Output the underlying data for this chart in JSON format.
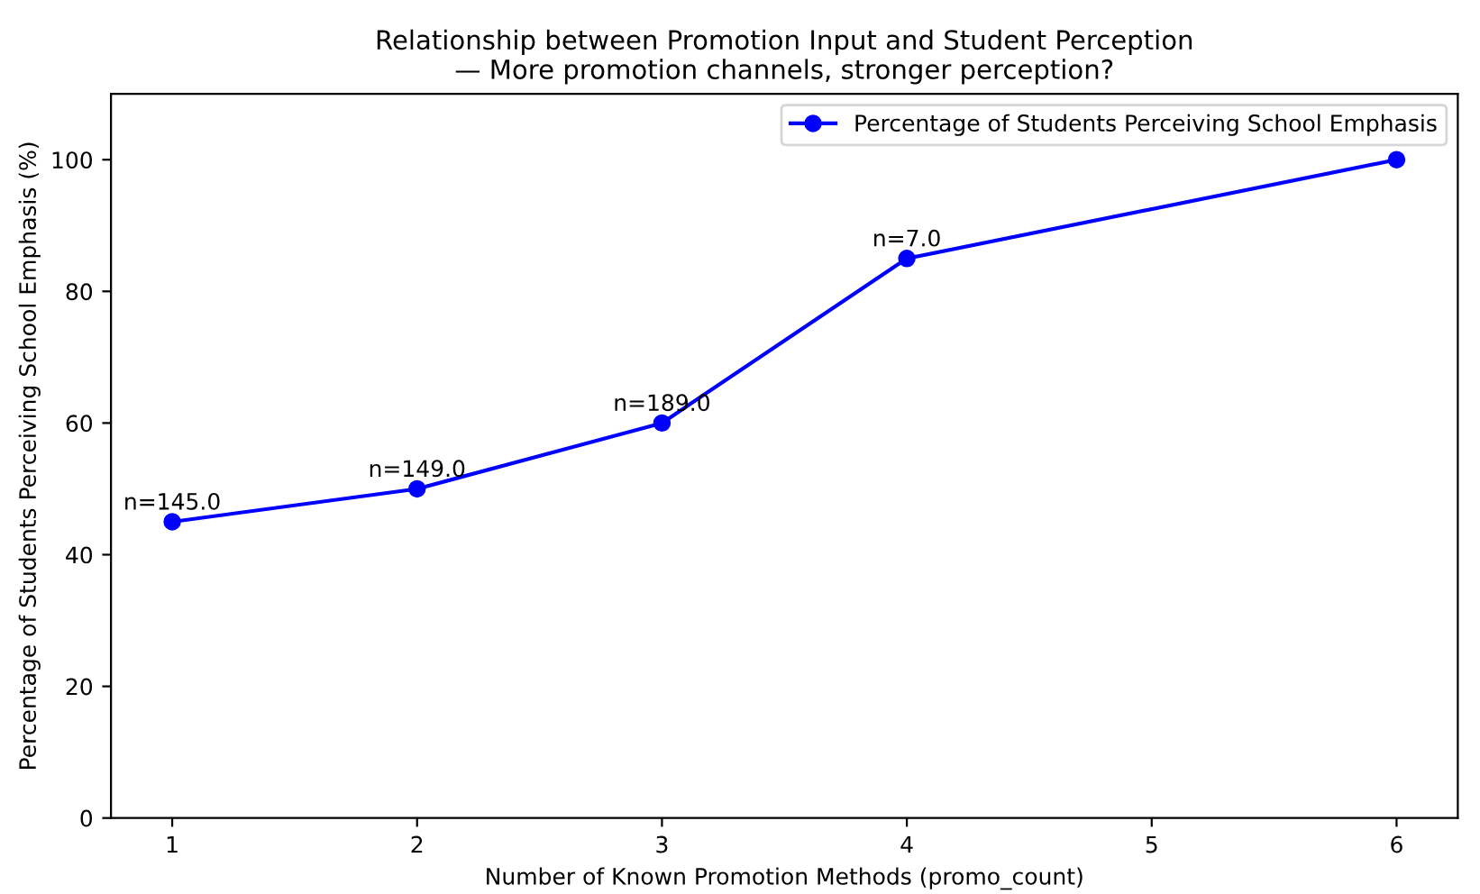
{
  "chart_data": {
    "type": "line",
    "title": "Relationship between Promotion Input and Student Perception\n— More promotion channels, stronger perception?",
    "xlabel": "Number of Known Promotion Methods (promo_count)",
    "ylabel": "Percentage of Students Perceiving School Emphasis (%)",
    "x": [
      1,
      2,
      3,
      4,
      6
    ],
    "series": [
      {
        "name": "Percentage of Students Perceiving School Emphasis",
        "color": "#0000ff",
        "values": [
          45,
          50,
          60,
          85,
          100
        ]
      }
    ],
    "annotations": [
      {
        "text": "n=145.0",
        "x": 1,
        "y": 45
      },
      {
        "text": "n=149.0",
        "x": 2,
        "y": 50
      },
      {
        "text": "n=189.0",
        "x": 3,
        "y": 60
      },
      {
        "text": "n=7.0",
        "x": 4,
        "y": 85
      }
    ],
    "xlim": [
      0.75,
      6.25
    ],
    "ylim": [
      0,
      110
    ],
    "xticks": [
      1,
      2,
      3,
      4,
      5,
      6
    ],
    "yticks": [
      0,
      20,
      40,
      60,
      80,
      100
    ],
    "grid": false,
    "legend": "top right",
    "marker": "circle",
    "line_style": "solid"
  }
}
